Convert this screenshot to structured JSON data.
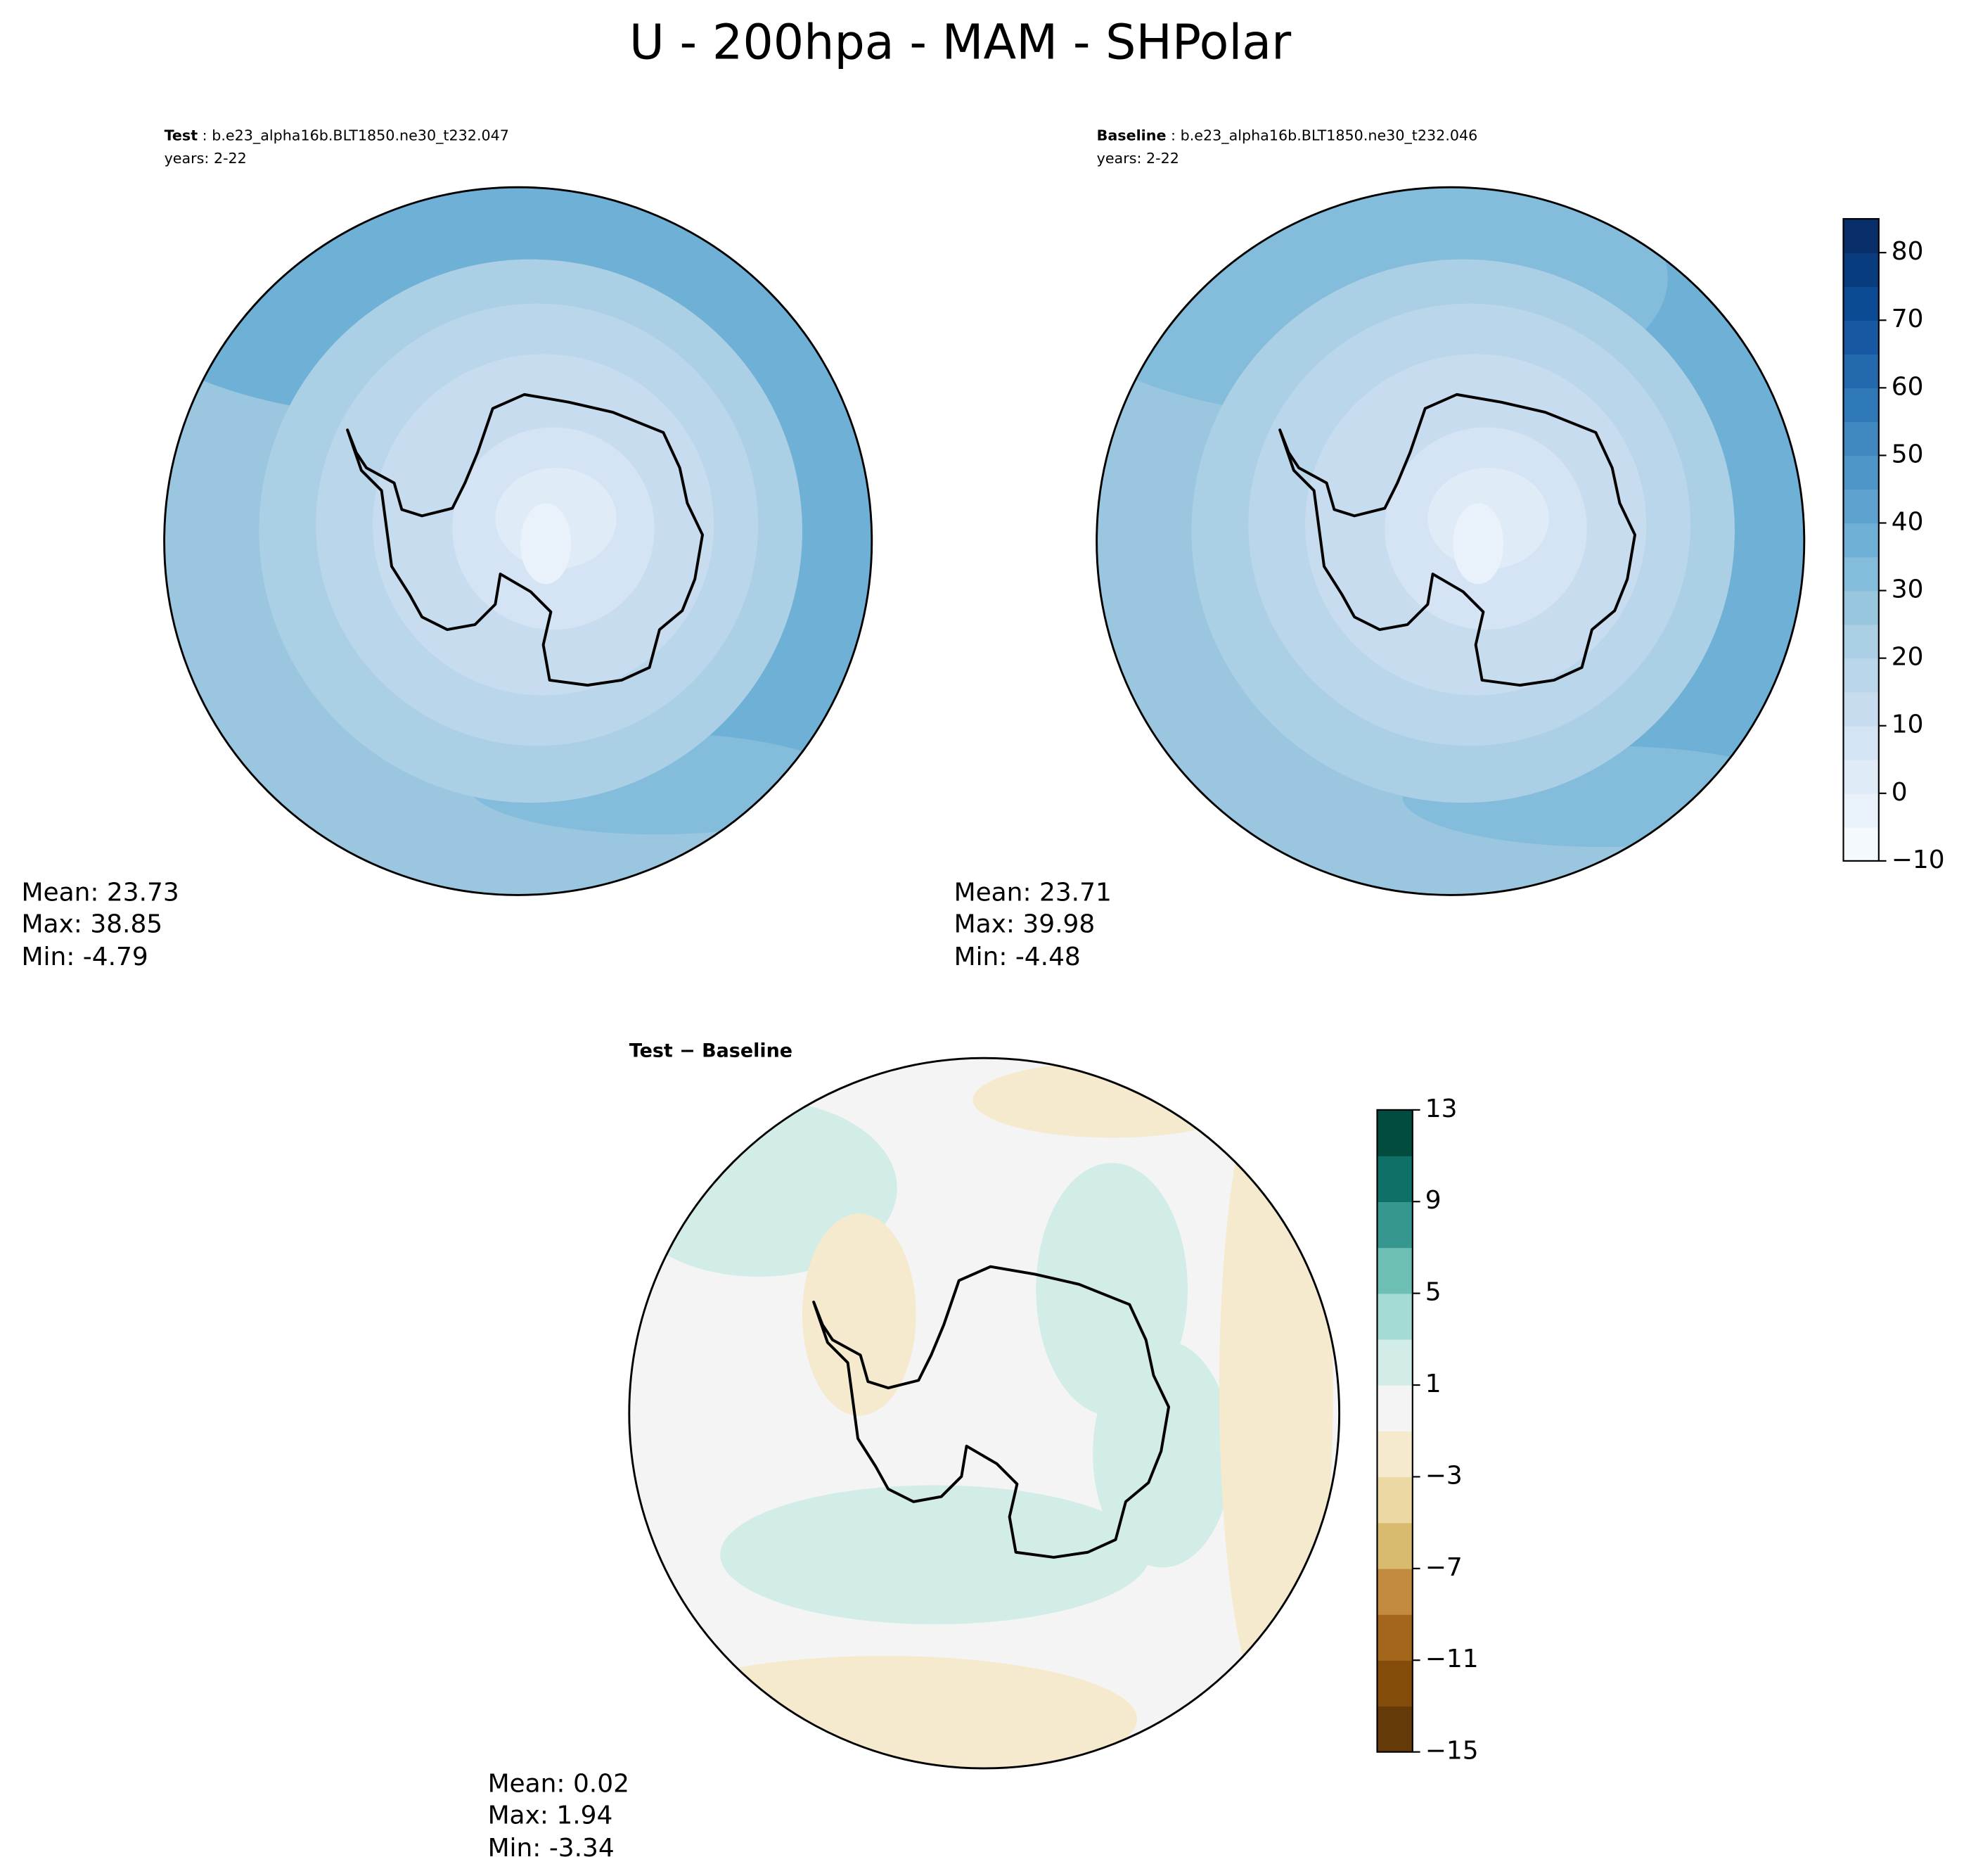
{
  "title": "U - 200hpa - MAM - SHPolar",
  "panels": [
    {
      "label_bold": "Test",
      "label_rest": " : b.e23_alpha16b.BLT1850.ne30_t232.047",
      "years": "years: 2-22",
      "stats": [
        "Mean: 23.73",
        "Max: 38.85",
        "Min: -4.79"
      ]
    },
    {
      "label_bold": "Baseline",
      "label_rest": " : b.e23_alpha16b.BLT1850.ne30_t232.046",
      "years": "years: 2-22",
      "stats": [
        "Mean: 23.71",
        "Max: 39.98",
        "Min: -4.48"
      ]
    },
    {
      "label_bold": "Test − Baseline",
      "stats": [
        "Mean:  0.02",
        "Max:  1.94",
        "Min: -3.34"
      ]
    }
  ],
  "colorbars": [
    {
      "lim": [
        -10,
        85
      ],
      "ticks": [
        {
          "value": -10,
          "label": "−10"
        },
        0,
        10,
        20,
        30,
        40,
        50,
        60,
        70,
        80
      ],
      "levels": [
        -10,
        -5,
        0,
        5,
        10,
        15,
        20,
        25,
        30,
        35,
        40,
        45,
        50,
        55,
        60,
        65,
        70,
        75,
        80,
        85
      ],
      "colors": [
        "#f4f9fe",
        "#e9f2fa",
        "#dfebf7",
        "#d4e4f4",
        "#c8dcf0",
        "#bad6eb",
        "#abcfe5",
        "#98c6df",
        "#84bcdb",
        "#6fb0d7",
        "#5ea3d0",
        "#4e96c8",
        "#3f88c0",
        "#3079b9",
        "#2369ad",
        "#1659a2",
        "#0b4b93",
        "#083c7e",
        "#082f6a"
      ]
    },
    {
      "lim": [
        -15,
        13
      ],
      "ticks": [
        {
          "value": -15,
          "label": "−15"
        },
        {
          "value": -11,
          "label": "−11"
        },
        {
          "value": -7,
          "label": "−7"
        },
        {
          "value": -3,
          "label": "−3"
        },
        1,
        5,
        9,
        13
      ],
      "levels": [
        -15,
        -13,
        -11,
        -9,
        -7,
        -5,
        -3,
        -1,
        1,
        3,
        5,
        7,
        9,
        11,
        13
      ],
      "colors": [
        "#643b08",
        "#834c0a",
        "#a4661d",
        "#c28b3f",
        "#d9bb6f",
        "#ebd8a3",
        "#f5e9ce",
        "#f3f4f3",
        "#d2ece8",
        "#a4dcd3",
        "#6cbfb2",
        "#35978f",
        "#0e7066",
        "#014c3e"
      ]
    }
  ]
}
